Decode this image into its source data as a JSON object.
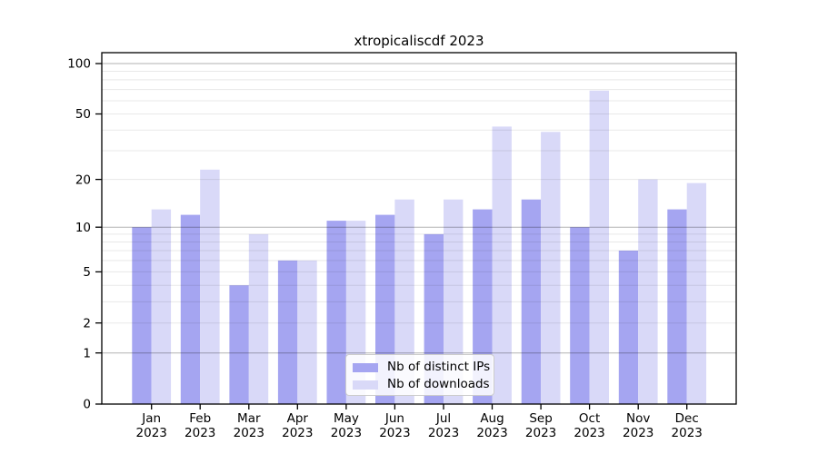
{
  "chart_data": {
    "type": "bar",
    "title": "xtropicaliscdf 2023",
    "year": "2023",
    "categories": [
      "Jan",
      "Feb",
      "Mar",
      "Apr",
      "May",
      "Jun",
      "Jul",
      "Aug",
      "Sep",
      "Oct",
      "Nov",
      "Dec"
    ],
    "series": [
      {
        "name": "Nb of distinct IPs",
        "color": "#a5a5f1",
        "values": [
          10,
          12,
          4,
          6,
          11,
          12,
          9,
          13,
          15,
          10,
          7,
          13
        ]
      },
      {
        "name": "Nb of downloads",
        "color": "#d9d9f8",
        "values": [
          13,
          23,
          9,
          6,
          11,
          15,
          15,
          42,
          39,
          69,
          20,
          19
        ]
      }
    ],
    "xlabel": "",
    "ylabel": "",
    "yscale": "log1p",
    "ylim": [
      0,
      116
    ],
    "yticks_labeled": [
      0,
      1,
      2,
      5,
      10,
      20,
      50,
      100
    ],
    "yticks_minor": [
      3,
      4,
      6,
      7,
      8,
      9,
      30,
      40,
      60,
      70,
      80,
      90
    ],
    "decade_gridlines": [
      1,
      10,
      100
    ],
    "grid": true,
    "legend_position": "bottom-center-inside"
  }
}
